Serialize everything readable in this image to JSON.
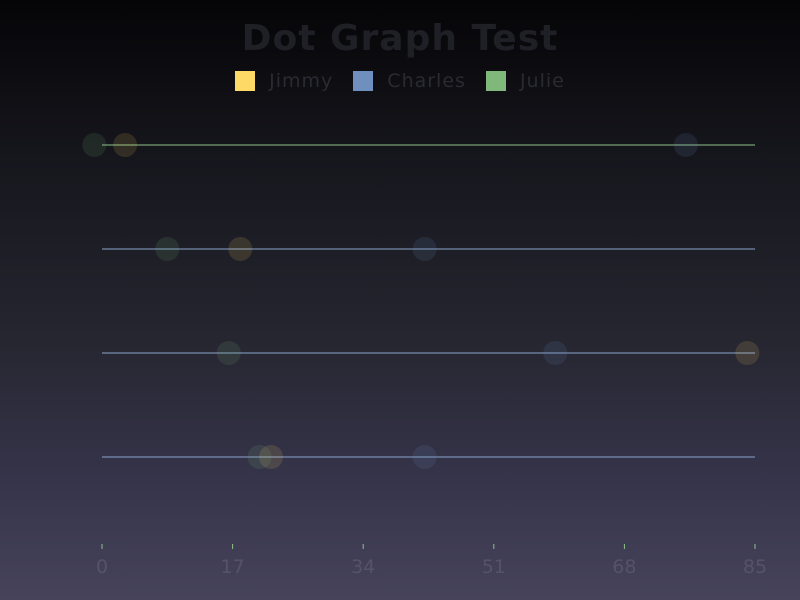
{
  "chart_data": {
    "type": "scatter",
    "title": "Dot Graph Test",
    "xlim": [
      0,
      85
    ],
    "xticks": [
      0,
      17,
      34,
      51,
      68,
      85
    ],
    "rows": 4,
    "series": [
      {
        "name": "Jimmy",
        "color": "#ffd966",
        "points": [
          {
            "row": 0,
            "x": 3
          },
          {
            "row": 1,
            "x": 18
          },
          {
            "row": 2,
            "x": 84
          },
          {
            "row": 3,
            "x": 22
          }
        ]
      },
      {
        "name": "Charles",
        "color": "#6f8fbf",
        "points": [
          {
            "row": 0,
            "x": 76
          },
          {
            "row": 1,
            "x": 42
          },
          {
            "row": 2,
            "x": 59
          },
          {
            "row": 3,
            "x": 42
          }
        ]
      },
      {
        "name": "Julie",
        "color": "#7fb87a",
        "points": [
          {
            "row": 0,
            "x": -1
          },
          {
            "row": 1,
            "x": 8.5
          },
          {
            "row": 2,
            "x": 16.5
          },
          {
            "row": 3,
            "x": 20.5
          }
        ]
      }
    ],
    "row_line_colors": [
      "#8fc48a",
      "#8aa4cc",
      "#8aa4cc",
      "#8aa4cc"
    ],
    "legend_position": "top"
  }
}
